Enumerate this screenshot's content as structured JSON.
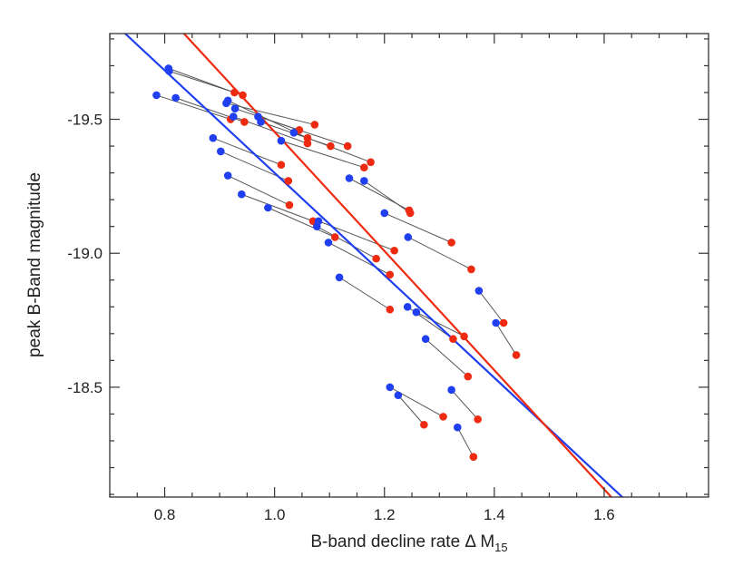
{
  "chart_data": {
    "type": "scatter",
    "title": "",
    "xlabel": "B-band decline rate Δ M",
    "xlabel_subscript": "15",
    "ylabel": "peak B-Band magnitude",
    "xlim": [
      0.7,
      1.79
    ],
    "ylim": [
      -19.82,
      -18.09
    ],
    "y_axis_inverted": true,
    "x_ticks": [
      0.8,
      1.0,
      1.2,
      1.4,
      1.6
    ],
    "x_tick_labels": [
      "0.8",
      "1.0",
      "1.2",
      "1.4",
      "1.6"
    ],
    "y_ticks": [
      -19.5,
      -19.0,
      -18.5
    ],
    "y_tick_labels": [
      "-19.5",
      "-19.0",
      "-18.5"
    ],
    "grid": false,
    "colors": {
      "blue": "#1f3ff0",
      "red": "#ee2a10",
      "pair_line": "#555555",
      "axis": "#333333"
    },
    "fit_lines": [
      {
        "color": "blue",
        "points": [
          [
            0.728,
            -19.82
          ],
          [
            1.633,
            -18.09
          ]
        ]
      },
      {
        "color": "red",
        "points": [
          [
            0.835,
            -19.82
          ],
          [
            1.613,
            -18.09
          ]
        ]
      }
    ],
    "pairs": [
      {
        "blue": [
          0.807,
          -19.69
        ],
        "red": [
          0.927,
          -19.6
        ]
      },
      {
        "blue": [
          0.808,
          -19.68
        ],
        "red": [
          0.942,
          -19.59
        ]
      },
      {
        "blue": [
          0.785,
          -19.59
        ],
        "red": [
          0.92,
          -19.5
        ]
      },
      {
        "blue": [
          0.82,
          -19.58
        ],
        "red": [
          0.945,
          -19.49
        ]
      },
      {
        "blue": [
          0.912,
          -19.56
        ],
        "red": [
          1.073,
          -19.48
        ]
      },
      {
        "blue": [
          0.915,
          -19.57
        ],
        "red": [
          1.06,
          -19.43
        ]
      },
      {
        "blue": [
          0.928,
          -19.54
        ],
        "red": [
          1.045,
          -19.46
        ]
      },
      {
        "blue": [
          0.925,
          -19.51
        ],
        "red": [
          1.06,
          -19.41
        ]
      },
      {
        "blue": [
          0.97,
          -19.51
        ],
        "red": [
          1.133,
          -19.4
        ]
      },
      {
        "blue": [
          0.975,
          -19.49
        ],
        "red": [
          1.102,
          -19.4
        ]
      },
      {
        "blue": [
          1.035,
          -19.45
        ],
        "red": [
          1.175,
          -19.34
        ]
      },
      {
        "blue": [
          1.012,
          -19.42
        ],
        "red": [
          1.163,
          -19.32
        ]
      },
      {
        "blue": [
          0.888,
          -19.43
        ],
        "red": [
          1.012,
          -19.33
        ]
      },
      {
        "blue": [
          0.902,
          -19.38
        ],
        "red": [
          1.025,
          -19.27
        ]
      },
      {
        "blue": [
          0.915,
          -19.29
        ],
        "red": [
          1.027,
          -19.18
        ]
      },
      {
        "blue": [
          1.136,
          -19.28
        ],
        "red": [
          1.245,
          -19.16
        ]
      },
      {
        "blue": [
          1.163,
          -19.27
        ],
        "red": [
          1.247,
          -19.15
        ]
      },
      {
        "blue": [
          0.94,
          -19.22
        ],
        "red": [
          1.07,
          -19.12
        ]
      },
      {
        "blue": [
          0.988,
          -19.17
        ],
        "red": [
          1.11,
          -19.06
        ]
      },
      {
        "blue": [
          1.08,
          -19.12
        ],
        "red": [
          1.218,
          -19.01
        ]
      },
      {
        "blue": [
          1.077,
          -19.1
        ],
        "red": [
          1.185,
          -18.98
        ]
      },
      {
        "blue": [
          1.098,
          -19.04
        ],
        "red": [
          1.21,
          -18.92
        ]
      },
      {
        "blue": [
          1.2,
          -19.15
        ],
        "red": [
          1.322,
          -19.04
        ]
      },
      {
        "blue": [
          1.243,
          -19.06
        ],
        "red": [
          1.358,
          -18.94
        ]
      },
      {
        "blue": [
          1.118,
          -18.91
        ],
        "red": [
          1.21,
          -18.79
        ]
      },
      {
        "blue": [
          1.242,
          -18.8
        ],
        "red": [
          1.325,
          -18.68
        ]
      },
      {
        "blue": [
          1.258,
          -18.78
        ],
        "red": [
          1.345,
          -18.69
        ]
      },
      {
        "blue": [
          1.275,
          -18.68
        ],
        "red": [
          1.352,
          -18.54
        ]
      },
      {
        "blue": [
          1.372,
          -18.86
        ],
        "red": [
          1.417,
          -18.74
        ]
      },
      {
        "blue": [
          1.403,
          -18.74
        ],
        "red": [
          1.44,
          -18.62
        ]
      },
      {
        "blue": [
          1.21,
          -18.5
        ],
        "red": [
          1.307,
          -18.39
        ]
      },
      {
        "blue": [
          1.225,
          -18.47
        ],
        "red": [
          1.272,
          -18.36
        ]
      },
      {
        "blue": [
          1.322,
          -18.49
        ],
        "red": [
          1.37,
          -18.38
        ]
      },
      {
        "blue": [
          1.333,
          -18.35
        ],
        "red": [
          1.362,
          -18.24
        ]
      }
    ]
  }
}
